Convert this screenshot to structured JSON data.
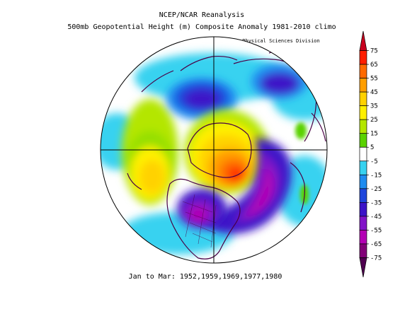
{
  "title": "NCEP/NCAR Reanalysis",
  "subtitle": "500mb Geopotential Height (m) Composite Anomaly 1981-2010 climo",
  "credit": "NOAA/ESRL Physical Sciences Division",
  "footer": "Jan to Mar: 1952,1959,1969,1977,1980",
  "colorbar": {
    "labels": [
      "75",
      "65",
      "55",
      "45",
      "35",
      "25",
      "15",
      "5",
      "-5",
      "-15",
      "-25",
      "-35",
      "-45",
      "-55",
      "-65",
      "-75"
    ],
    "colors": [
      "#c8001e",
      "#ff1e00",
      "#ff6a00",
      "#ff9e00",
      "#ffd200",
      "#fff000",
      "#b4e600",
      "#5ad200",
      "#ffffff",
      "#37d2f0",
      "#1e8cf0",
      "#1e46dc",
      "#3c14c8",
      "#8214c8",
      "#b400b4",
      "#820078",
      "#500050"
    ]
  },
  "chart_data": {
    "type": "heatmap",
    "projection": "polar-stereographic, north pole centered",
    "variable": "500mb geopotential height composite anomaly",
    "units": "m",
    "value_range": [
      -75,
      75
    ],
    "contour_interval": 10,
    "features": [
      {
        "region": "Greenland / Canadian Arctic",
        "sign": "positive",
        "peak": 55
      },
      {
        "region": "North Pacific (west of North America)",
        "sign": "positive",
        "peak": 35
      },
      {
        "region": "Eastern North Atlantic / Western Europe",
        "sign": "negative",
        "peak": -65
      },
      {
        "region": "Northeast Pacific / Alaska",
        "sign": "negative",
        "peak": -45
      },
      {
        "region": "Siberia",
        "sign": "negative",
        "peak": -35
      },
      {
        "region": "Northern Scandinavia",
        "sign": "positive",
        "peak": 25
      },
      {
        "region": "Central Asia",
        "sign": "positive",
        "peak": 15
      }
    ]
  }
}
